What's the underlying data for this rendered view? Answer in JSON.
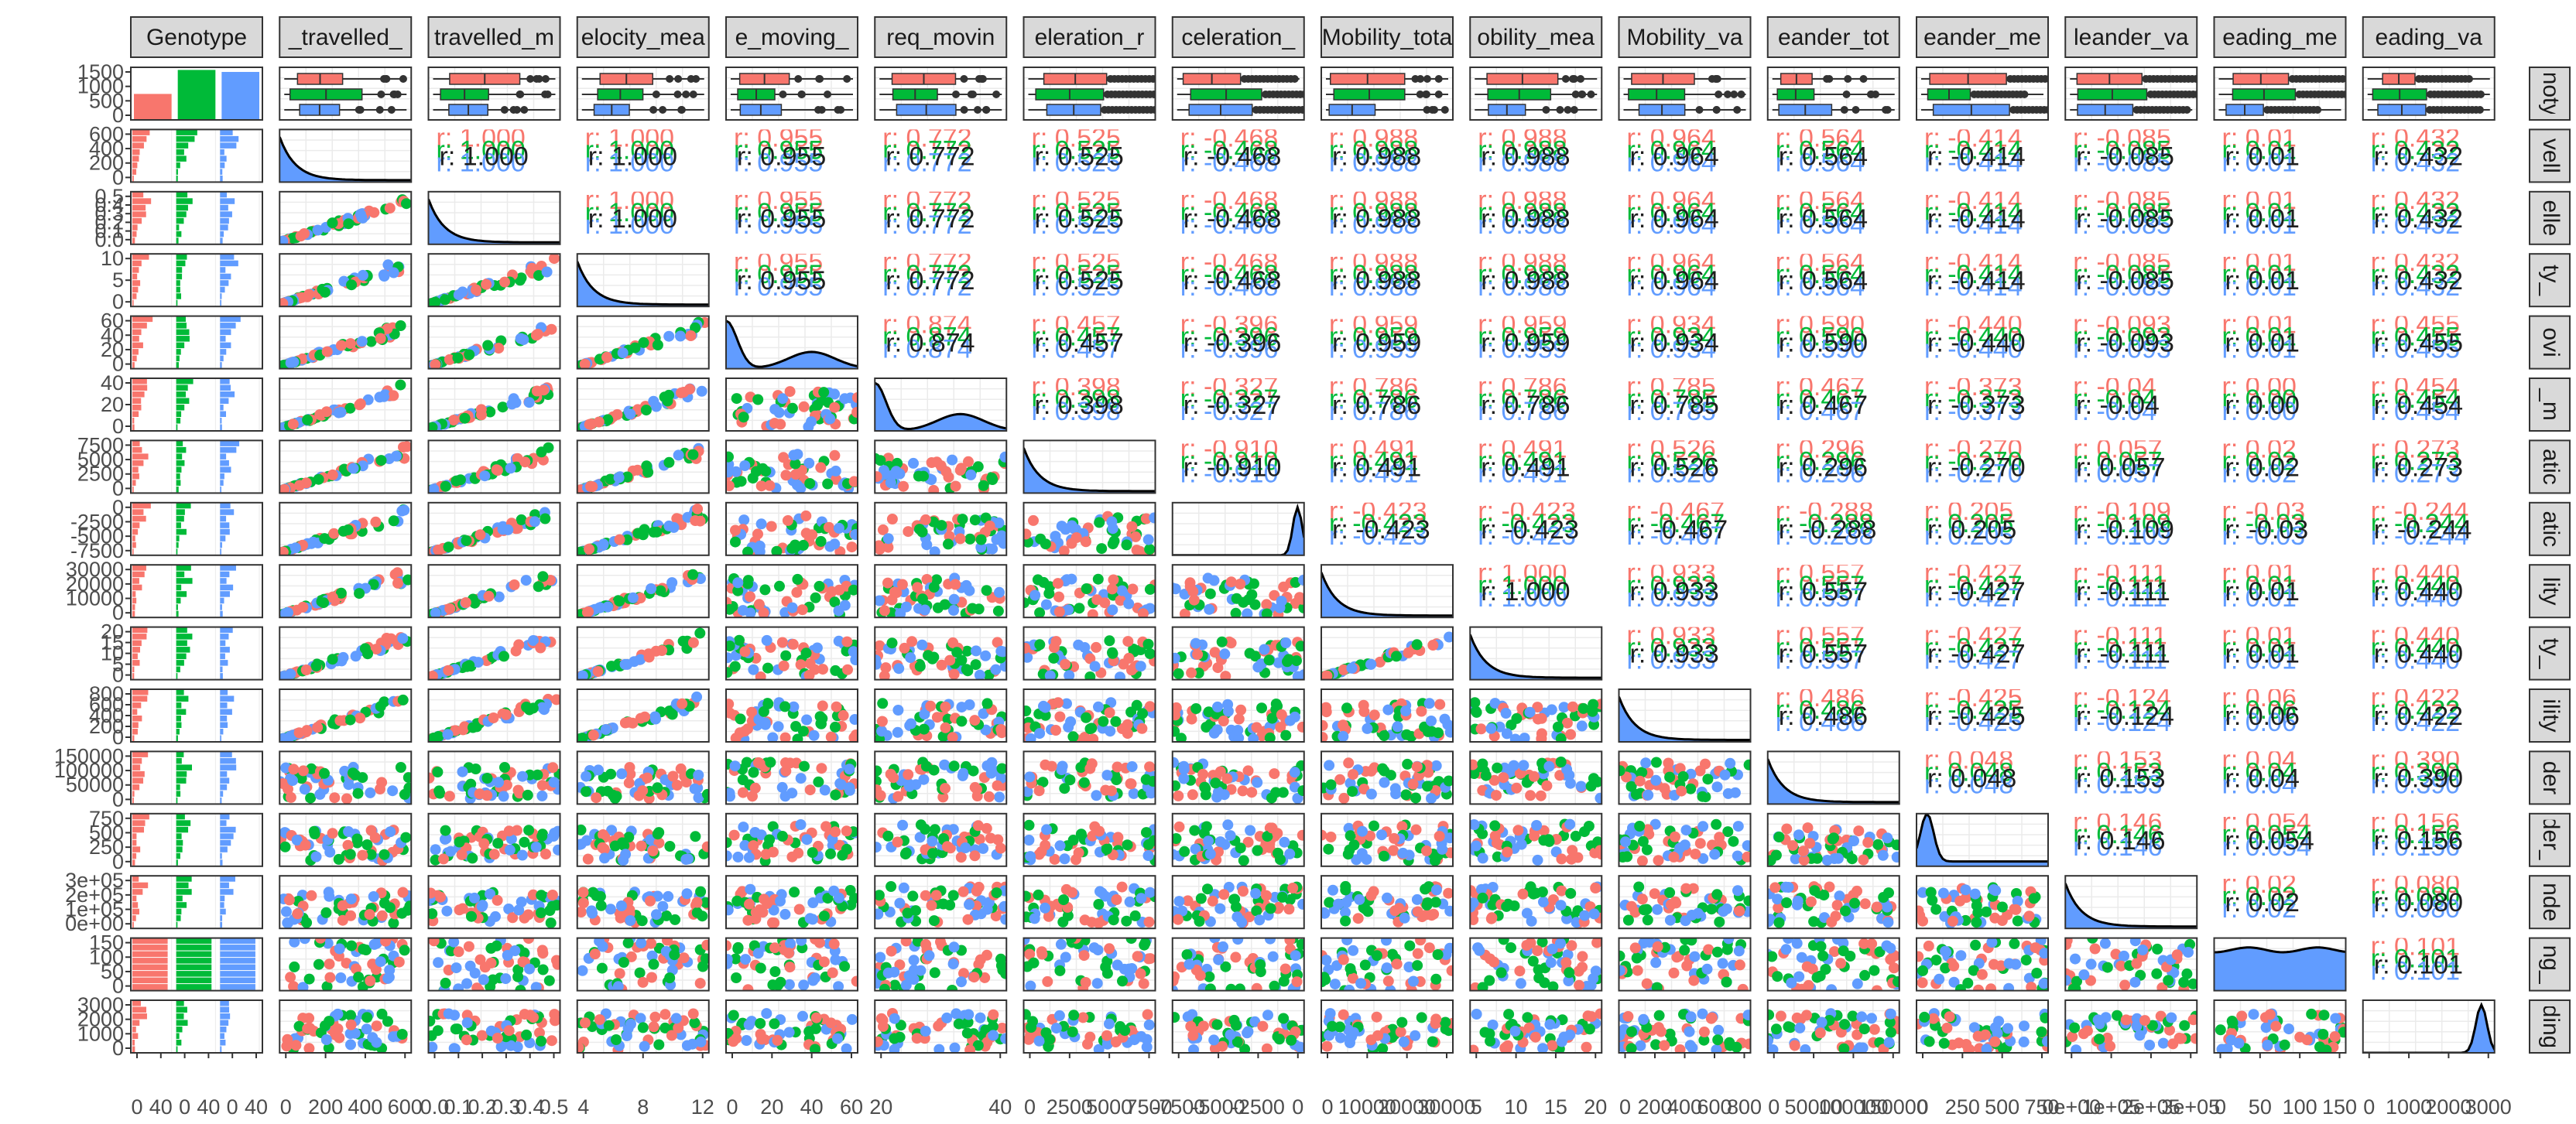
{
  "chart_data": {
    "type": "pairs-matrix",
    "title": "",
    "xlabel": "",
    "ylabel": "",
    "legend": "none",
    "grid": true,
    "colors": {
      "group1": "#F8766D",
      "group2": "#00BA38",
      "group3": "#619CFF",
      "strip_fill": "#D9D9D9",
      "panel_border": "#333333",
      "grid": "#EBEBEB",
      "point_dark": "#333333",
      "density_line": "#000000"
    },
    "column_strips": [
      "Genotype",
      "_travelled_",
      "travelled_m",
      "elocity_mea",
      "e_moving_",
      "req_movin",
      "eleration_r",
      "celeration_",
      "Mobility_tota",
      "obility_mea",
      "Mobility_va",
      "eander_tot",
      "eander_me",
      "leander_va",
      "eading_me",
      "eading_va"
    ],
    "row_strips": [
      "noty",
      "vell",
      "elle",
      "ty_",
      "ovi",
      "_m",
      "atic",
      "atic",
      "lity",
      "ty_",
      "ility",
      "der",
      "der_",
      "nde",
      "ng_",
      "ding"
    ],
    "y_tick_labels": [
      [
        "1500",
        "1000",
        "500",
        "0"
      ],
      [
        "600",
        "400",
        "200",
        "0"
      ],
      [
        "0.5",
        "0.4",
        "0.3",
        "0.2",
        "0.1",
        "0.0"
      ],
      [
        "10",
        "5",
        "0"
      ],
      [
        "60",
        "40",
        "20",
        "0"
      ],
      [
        "40",
        "20",
        "0"
      ],
      [
        "7500",
        "5000",
        "2500",
        "0"
      ],
      [
        "0",
        "-2500",
        "-5000",
        "-7500"
      ],
      [
        "30000",
        "20000",
        "10000",
        "0"
      ],
      [
        "20",
        "15",
        "10",
        "5",
        "0"
      ],
      [
        "800",
        "600",
        "400",
        "200",
        "0"
      ],
      [
        "150000",
        "100000",
        "50000",
        "0"
      ],
      [
        "750",
        "500",
        "250",
        "0"
      ],
      [
        "3e+05",
        "2e+05",
        "1e+05",
        "0e+00"
      ],
      [
        "150",
        "100",
        "50",
        "0"
      ],
      [
        "3000",
        "2000",
        "1000",
        "0"
      ]
    ],
    "x_tick_labels": [
      [
        "0",
        "40",
        "0",
        "40",
        "0",
        "40"
      ],
      [
        "0",
        "200",
        "400",
        "600"
      ],
      [
        "0.0",
        "0.1",
        "0.2",
        "0.3",
        "0.4",
        "0.5"
      ],
      [
        "4",
        "8",
        "12"
      ],
      [
        "0",
        "20",
        "40",
        "60"
      ],
      [
        "20",
        "40"
      ],
      [
        "0",
        "2500",
        "5000",
        "7500"
      ],
      [
        "-7500",
        "-5000",
        "-2500",
        "0"
      ],
      [
        "0",
        "10000",
        "20000",
        "30000"
      ],
      [
        "5",
        "10",
        "15",
        "20"
      ],
      [
        "0",
        "200",
        "400",
        "600",
        "800"
      ],
      [
        "0",
        "50000",
        "100000",
        "150000"
      ],
      [
        "0",
        "250",
        "500",
        "750"
      ],
      [
        "0e+00",
        "1e+05",
        "2e+05",
        "3e+05"
      ],
      [
        "0",
        "50",
        "100",
        "150"
      ],
      [
        "0",
        "1000",
        "2000",
        "3000"
      ]
    ],
    "correlations_upper": [
      [
        "1.000",
        "1.000",
        "0.955",
        "0.772",
        "0.525",
        "-0.468",
        "0.988",
        "0.988",
        "0.964",
        "0.564",
        "-0.414",
        "-0.085",
        "0.01",
        "0.432"
      ],
      [
        "1.000",
        "0.955",
        "0.772",
        "0.525",
        "-0.468",
        "0.988",
        "0.988",
        "0.964",
        "0.564",
        "-0.414",
        "-0.085",
        "0.01",
        "0.432"
      ],
      [
        "0.955",
        "0.772",
        "0.525",
        "-0.468",
        "0.988",
        "0.988",
        "0.964",
        "0.564",
        "-0.414",
        "-0.085",
        "0.01",
        "0.432"
      ],
      [
        "0.874",
        "0.457",
        "-0.396",
        "0.959",
        "0.959",
        "0.934",
        "0.590",
        "-0.440",
        "-0.093",
        "0.01",
        "0.455"
      ],
      [
        "0.398",
        "-0.327",
        "0.786",
        "0.786",
        "0.785",
        "0.467",
        "-0.373",
        "-0.04",
        "0.00",
        "0.454"
      ],
      [
        "-0.910",
        "0.491",
        "0.491",
        "0.526",
        "0.296",
        "-0.270",
        "0.057",
        "0.02",
        "0.273"
      ],
      [
        "-0.423",
        "-0.423",
        "-0.467",
        "-0.288",
        "0.205",
        "-0.109",
        "-0.03",
        "-0.244"
      ],
      [
        "1.000",
        "0.933",
        "0.557",
        "-0.427",
        "-0.111",
        "0.01",
        "0.440"
      ],
      [
        "0.933",
        "0.557",
        "-0.427",
        "-0.111",
        "0.01",
        "0.440"
      ],
      [
        "0.486",
        "-0.425",
        "-0.124",
        "0.06",
        "0.422"
      ],
      [
        "0.048",
        "0.153",
        "0.04",
        "0.390"
      ],
      [
        "0.146",
        "0.054",
        "0.156"
      ],
      [
        "0.02",
        "0.080"
      ],
      [
        "0.101"
      ]
    ]
  }
}
